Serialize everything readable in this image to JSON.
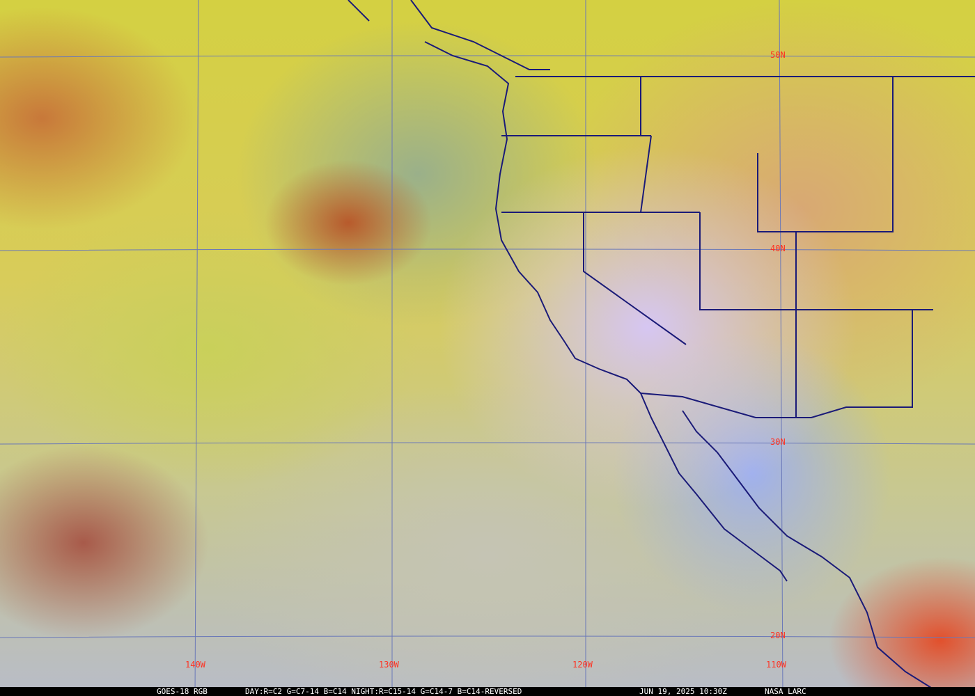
{
  "caption": {
    "satellite": "GOES-18 RGB",
    "recipe": "DAY:R=C2 G=C7-14 B=C14 NIGHT:R=C15-14 G=C14-7 B=C14-REVERSED",
    "timestamp": "JUN 19, 2025 10:30Z",
    "credit": "NASA LARC"
  },
  "grid": {
    "longitudes": [
      "140W",
      "130W",
      "120W",
      "110W"
    ],
    "latitudes": [
      "50N",
      "40N",
      "30N",
      "20N"
    ]
  },
  "colors": {
    "grid": "#6a78b8",
    "boundaries": "#1a1a78",
    "labels": "#ff3020"
  }
}
